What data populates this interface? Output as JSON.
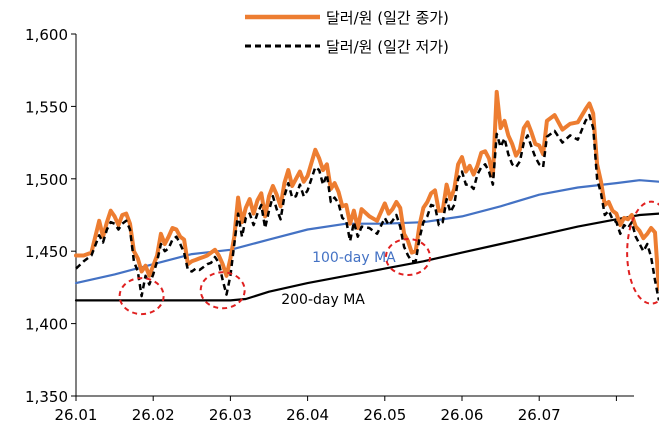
{
  "chart_data": {
    "type": "line",
    "title": "",
    "xlabel": "",
    "ylabel": "",
    "ylim": [
      1350,
      1600
    ],
    "yticks": [
      1350,
      1400,
      1450,
      1500,
      1550,
      1600
    ],
    "ytick_labels": [
      "1,350",
      "1,400",
      "1,450",
      "1,500",
      "1,550",
      "1,600"
    ],
    "xlim": [
      0,
      7.6
    ],
    "xticks": [
      0,
      1,
      2,
      3,
      4,
      5,
      6,
      7
    ],
    "xtick_labels": [
      "26.01",
      "26.02",
      "26.03",
      "26.04",
      "26.05",
      "26.06",
      "26.07"
    ],
    "legend_position": "top",
    "grid": false,
    "series": [
      {
        "name": "달러/원 (일간 종가)",
        "style": "solid",
        "color": "#ED7D31",
        "x": [
          0.0,
          0.1,
          0.2,
          0.3,
          0.35,
          0.4,
          0.45,
          0.5,
          0.55,
          0.6,
          0.65,
          0.7,
          0.75,
          0.8,
          0.85,
          0.9,
          0.95,
          1.0,
          1.05,
          1.1,
          1.15,
          1.2,
          1.25,
          1.3,
          1.35,
          1.4,
          1.45,
          1.5,
          1.55,
          1.6,
          1.65,
          1.7,
          1.75,
          1.8,
          1.85,
          1.9,
          1.95,
          2.0,
          2.05,
          2.1,
          2.15,
          2.2,
          2.25,
          2.3,
          2.35,
          2.4,
          2.45,
          2.5,
          2.55,
          2.6,
          2.65,
          2.7,
          2.75,
          2.8,
          2.85,
          2.9,
          2.95,
          3.0,
          3.1,
          3.15,
          3.2,
          3.25,
          3.3,
          3.35,
          3.4,
          3.45,
          3.5,
          3.55,
          3.6,
          3.65,
          3.7,
          3.8,
          3.9,
          4.0,
          4.05,
          4.1,
          4.15,
          4.2,
          4.25,
          4.3,
          4.35,
          4.4,
          4.45,
          4.5,
          4.55,
          4.6,
          4.65,
          4.7,
          4.75,
          4.8,
          4.85,
          4.9,
          4.95,
          5.0,
          5.05,
          5.1,
          5.15,
          5.2,
          5.25,
          5.3,
          5.35,
          5.4,
          5.45,
          5.5,
          5.55,
          5.6,
          5.65,
          5.7,
          5.75,
          5.8,
          5.85,
          5.9,
          5.95,
          6.0,
          6.05,
          6.1,
          6.2,
          6.3,
          6.4,
          6.5,
          6.6,
          6.65,
          6.7,
          6.75,
          6.8,
          6.85,
          6.9,
          6.95,
          7.0,
          7.05,
          7.1,
          7.15,
          7.2,
          7.25,
          7.3,
          7.35,
          7.4,
          7.45,
          7.5,
          7.55
        ],
        "values": [
          1447,
          1447,
          1449,
          1471,
          1460,
          1470,
          1478,
          1474,
          1468,
          1475,
          1476,
          1469,
          1450,
          1445,
          1436,
          1440,
          1433,
          1440,
          1447,
          1462,
          1455,
          1460,
          1466,
          1465,
          1460,
          1458,
          1441,
          1443,
          1444,
          1445,
          1446,
          1447,
          1449,
          1451,
          1447,
          1441,
          1433,
          1445,
          1460,
          1487,
          1470,
          1480,
          1486,
          1476,
          1485,
          1490,
          1474,
          1488,
          1495,
          1489,
          1481,
          1497,
          1506,
          1495,
          1500,
          1505,
          1498,
          1502,
          1520,
          1514,
          1506,
          1510,
          1493,
          1497,
          1491,
          1481,
          1482,
          1469,
          1478,
          1466,
          1479,
          1474,
          1471,
          1483,
          1476,
          1479,
          1484,
          1480,
          1462,
          1457,
          1449,
          1450,
          1468,
          1480,
          1484,
          1490,
          1492,
          1478,
          1478,
          1496,
          1486,
          1493,
          1510,
          1515,
          1505,
          1509,
          1503,
          1509,
          1518,
          1519,
          1514,
          1502,
          1560,
          1535,
          1540,
          1530,
          1524,
          1516,
          1520,
          1535,
          1539,
          1532,
          1524,
          1523,
          1517,
          1540,
          1544,
          1534,
          1538,
          1539,
          1548,
          1552,
          1545,
          1510,
          1498,
          1482,
          1484,
          1478,
          1476,
          1468,
          1473,
          1472,
          1475,
          1467,
          1464,
          1459,
          1462,
          1466,
          1463,
          1424
        ]
      },
      {
        "name": "달러/원 (일간 저가)",
        "style": "dashed",
        "color": "#000000",
        "x": [
          0.0,
          0.1,
          0.2,
          0.3,
          0.35,
          0.4,
          0.45,
          0.5,
          0.55,
          0.6,
          0.65,
          0.7,
          0.75,
          0.8,
          0.85,
          0.9,
          0.95,
          1.0,
          1.05,
          1.1,
          1.15,
          1.2,
          1.25,
          1.3,
          1.35,
          1.4,
          1.45,
          1.5,
          1.55,
          1.6,
          1.65,
          1.7,
          1.75,
          1.8,
          1.85,
          1.9,
          1.95,
          2.0,
          2.05,
          2.1,
          2.15,
          2.2,
          2.25,
          2.3,
          2.35,
          2.4,
          2.45,
          2.5,
          2.55,
          2.6,
          2.65,
          2.7,
          2.75,
          2.8,
          2.85,
          2.9,
          2.95,
          3.0,
          3.1,
          3.15,
          3.2,
          3.25,
          3.3,
          3.35,
          3.4,
          3.45,
          3.5,
          3.55,
          3.6,
          3.65,
          3.7,
          3.8,
          3.9,
          4.0,
          4.05,
          4.1,
          4.15,
          4.2,
          4.25,
          4.3,
          4.35,
          4.4,
          4.45,
          4.5,
          4.55,
          4.6,
          4.65,
          4.7,
          4.75,
          4.8,
          4.85,
          4.9,
          4.95,
          5.0,
          5.05,
          5.1,
          5.15,
          5.2,
          5.25,
          5.3,
          5.35,
          5.4,
          5.45,
          5.5,
          5.55,
          5.6,
          5.65,
          5.7,
          5.75,
          5.8,
          5.85,
          5.9,
          5.95,
          6.0,
          6.05,
          6.1,
          6.2,
          6.3,
          6.4,
          6.5,
          6.6,
          6.65,
          6.7,
          6.75,
          6.8,
          6.85,
          6.9,
          6.95,
          7.0,
          7.05,
          7.1,
          7.15,
          7.2,
          7.25,
          7.3,
          7.35,
          7.4,
          7.45,
          7.5,
          7.55
        ],
        "values": [
          1438,
          1443,
          1447,
          1461,
          1456,
          1465,
          1470,
          1469,
          1465,
          1469,
          1471,
          1465,
          1443,
          1436,
          1419,
          1433,
          1427,
          1434,
          1443,
          1455,
          1450,
          1452,
          1458,
          1460,
          1455,
          1449,
          1437,
          1436,
          1438,
          1437,
          1439,
          1441,
          1442,
          1446,
          1442,
          1430,
          1420,
          1433,
          1455,
          1476,
          1460,
          1473,
          1476,
          1468,
          1476,
          1482,
          1466,
          1478,
          1488,
          1479,
          1472,
          1488,
          1497,
          1487,
          1488,
          1496,
          1488,
          1492,
          1508,
          1506,
          1496,
          1503,
          1484,
          1487,
          1483,
          1473,
          1471,
          1457,
          1470,
          1460,
          1467,
          1466,
          1462,
          1473,
          1468,
          1471,
          1475,
          1467,
          1453,
          1447,
          1443,
          1443,
          1459,
          1470,
          1474,
          1482,
          1481,
          1468,
          1470,
          1486,
          1477,
          1482,
          1500,
          1505,
          1496,
          1496,
          1493,
          1503,
          1508,
          1510,
          1505,
          1496,
          1531,
          1522,
          1528,
          1517,
          1510,
          1508,
          1512,
          1525,
          1530,
          1522,
          1515,
          1510,
          1508,
          1529,
          1533,
          1525,
          1530,
          1527,
          1540,
          1544,
          1535,
          1500,
          1490,
          1475,
          1478,
          1472,
          1470,
          1462,
          1468,
          1466,
          1470,
          1460,
          1455,
          1450,
          1455,
          1446,
          1430,
          1416
        ]
      },
      {
        "name": "100-day MA",
        "style": "solid",
        "color": "#4472C4",
        "x": [
          0.0,
          0.5,
          1.0,
          1.5,
          2.0,
          2.5,
          3.0,
          3.5,
          4.0,
          4.5,
          5.0,
          5.5,
          6.0,
          6.5,
          7.0,
          7.3,
          7.55
        ],
        "values": [
          1428,
          1434,
          1441,
          1448,
          1451,
          1458,
          1465,
          1469,
          1469,
          1470,
          1474,
          1481,
          1489,
          1494,
          1497,
          1499,
          1498
        ]
      },
      {
        "name": "200-day MA",
        "style": "solid",
        "color": "#000000",
        "x": [
          0.0,
          1.0,
          2.0,
          2.2,
          2.5,
          3.0,
          3.5,
          4.0,
          4.5,
          5.0,
          5.5,
          6.0,
          6.5,
          7.0,
          7.3,
          7.55
        ],
        "values": [
          1416,
          1416,
          1416,
          1417,
          1422,
          1428,
          1433,
          1438,
          1443,
          1449,
          1455,
          1461,
          1467,
          1472,
          1475,
          1476
        ]
      }
    ],
    "annotations": [
      {
        "text": "100-day MA",
        "color": "#4472C4",
        "x": 3.6,
        "y": 1446
      },
      {
        "text": "200-day MA",
        "color": "#000000",
        "x": 3.2,
        "y": 1417
      }
    ],
    "highlight_circles": [
      {
        "x": 0.85,
        "y": 1419,
        "color": "#E02020"
      },
      {
        "x": 1.9,
        "y": 1423,
        "color": "#E02020"
      },
      {
        "x": 4.3,
        "y": 1446,
        "color": "#E02020"
      },
      {
        "x": 7.45,
        "y": 1449,
        "color": "#E02020"
      }
    ]
  }
}
